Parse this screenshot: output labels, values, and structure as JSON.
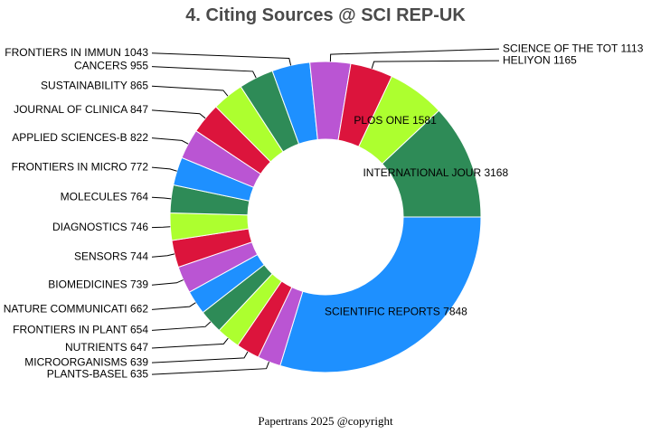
{
  "chart_data": {
    "type": "pie",
    "title": "4. Citing Sources @ SCI REP-UK",
    "donut": true,
    "slices": [
      {
        "label": "SCIENTIFIC REPORTS",
        "value": 7848,
        "color": "#1E90FF"
      },
      {
        "label": "PLANTS-BASEL",
        "value": 635,
        "color": "#BA55D3"
      },
      {
        "label": "MICROORGANISMS",
        "value": 639,
        "color": "#DC143C"
      },
      {
        "label": "NUTRIENTS",
        "value": 647,
        "color": "#ADFF2F"
      },
      {
        "label": "FRONTIERS IN PLANT",
        "value": 654,
        "color": "#2E8B57"
      },
      {
        "label": "NATURE COMMUNICATI",
        "value": 662,
        "color": "#1E90FF"
      },
      {
        "label": "BIOMEDICINES",
        "value": 739,
        "color": "#BA55D3"
      },
      {
        "label": "SENSORS",
        "value": 744,
        "color": "#DC143C"
      },
      {
        "label": "DIAGNOSTICS",
        "value": 746,
        "color": "#ADFF2F"
      },
      {
        "label": "MOLECULES",
        "value": 764,
        "color": "#2E8B57"
      },
      {
        "label": "FRONTIERS IN MICRO",
        "value": 772,
        "color": "#1E90FF"
      },
      {
        "label": "APPLIED SCIENCES-B",
        "value": 822,
        "color": "#BA55D3"
      },
      {
        "label": "JOURNAL OF CLINICA",
        "value": 847,
        "color": "#DC143C"
      },
      {
        "label": "SUSTAINABILITY",
        "value": 865,
        "color": "#ADFF2F"
      },
      {
        "label": "CANCERS",
        "value": 955,
        "color": "#2E8B57"
      },
      {
        "label": "FRONTIERS IN IMMUN",
        "value": 1043,
        "color": "#1E90FF"
      },
      {
        "label": "SCIENCE OF THE TOT",
        "value": 1113,
        "color": "#BA55D3"
      },
      {
        "label": "HELIYON",
        "value": 1165,
        "color": "#DC143C"
      },
      {
        "label": "PLOS ONE",
        "value": 1581,
        "color": "#ADFF2F"
      },
      {
        "label": "INTERNATIONAL JOUR",
        "value": 3168,
        "color": "#2E8B57"
      }
    ]
  },
  "footer": "Papertrans 2025 @copyright"
}
